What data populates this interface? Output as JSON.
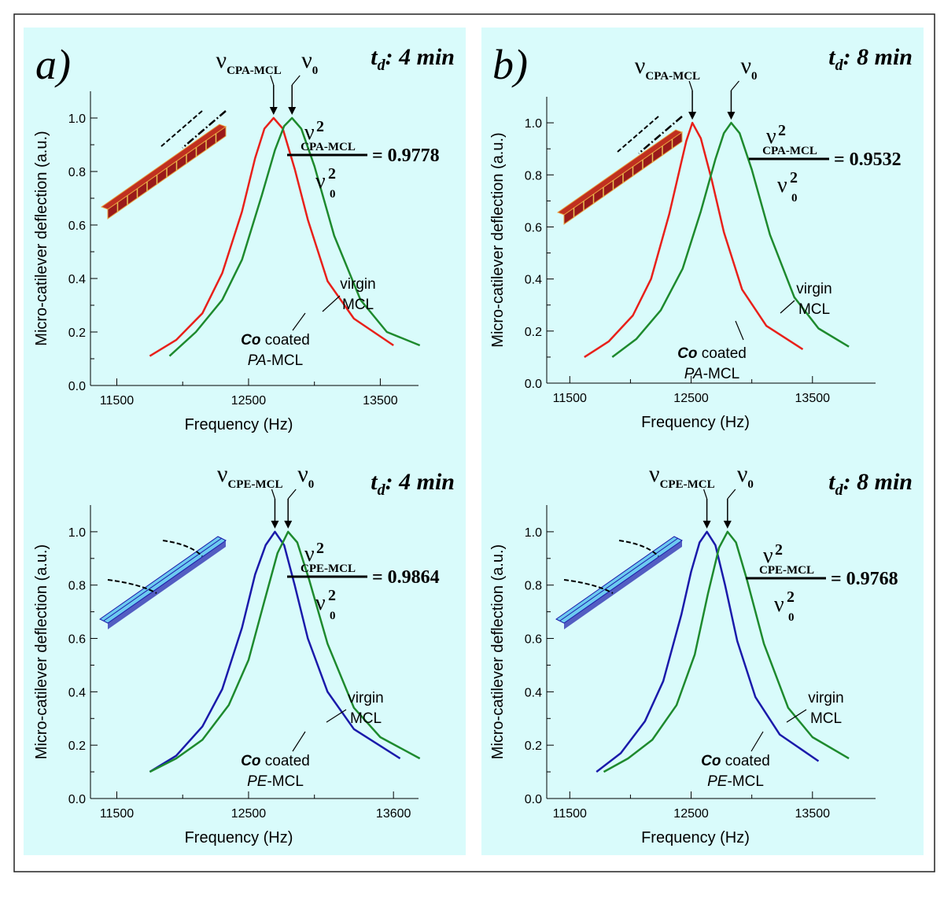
{
  "chart_data": [
    {
      "type": "line",
      "panel_label": "a)",
      "td": {
        "symbol": "t",
        "subscript": "d",
        "text": ": 4 min"
      },
      "peak_labels": [
        {
          "symbol": "ν",
          "subscript": "CPA-MCL"
        },
        {
          "symbol": "ν",
          "subscript": "0"
        }
      ],
      "ratio": {
        "numerator": {
          "symbol": "ν",
          "superscript": "2",
          "subscript": "CPA-MCL"
        },
        "denominator": {
          "symbol": "ν",
          "superscript": "2",
          "subscript": "0"
        },
        "result": "= 0.9778"
      },
      "xlabel": "Frequency (Hz)",
      "ylabel": "Micro-catilever deflection (a.u.)",
      "xlim": [
        11300,
        13790
      ],
      "ylim": [
        0,
        1.1
      ],
      "xticks": [
        11500,
        12500,
        13500
      ],
      "xminorticks": [
        12000,
        13000
      ],
      "yticks": [
        {
          "value": 0,
          "label": "0.0"
        },
        0.2,
        0.4,
        0.6,
        0.8,
        {
          "value": 1,
          "label": "1.0"
        }
      ],
      "yminorticks": [
        0.1,
        0.3,
        0.5,
        0.7,
        0.9
      ],
      "series": [
        {
          "label_lines": [
            [
              "Co",
              " coated"
            ],
            [
              "PA",
              "-MCL"
            ]
          ],
          "color": "#e8201a",
          "x": [
            11750,
            11950,
            12150,
            12300,
            12450,
            12550,
            12620,
            12690,
            12760,
            12850,
            12950,
            13100,
            13300,
            13600
          ],
          "values": [
            0.11,
            0.17,
            0.27,
            0.42,
            0.65,
            0.85,
            0.96,
            1.0,
            0.96,
            0.81,
            0.62,
            0.39,
            0.25,
            0.15
          ]
        },
        {
          "label_lines": [
            [
              "virgin"
            ],
            [
              "MCL"
            ]
          ],
          "color": "#1e8a2e",
          "x": [
            11900,
            12100,
            12300,
            12450,
            12600,
            12700,
            12770,
            12830,
            12900,
            13000,
            13150,
            13350,
            13550,
            13800
          ],
          "values": [
            0.11,
            0.2,
            0.32,
            0.47,
            0.71,
            0.88,
            0.97,
            1.0,
            0.96,
            0.82,
            0.56,
            0.32,
            0.2,
            0.15
          ]
        }
      ]
    },
    {
      "type": "line",
      "panel_label": "b)",
      "td": {
        "symbol": "t",
        "subscript": "d",
        "text": ": 8 min"
      },
      "peak_labels": [
        {
          "symbol": "ν",
          "subscript": "CPA-MCL"
        },
        {
          "symbol": "ν",
          "subscript": "0"
        }
      ],
      "ratio": {
        "numerator": {
          "symbol": "ν",
          "superscript": "2",
          "subscript": "CPA-MCL"
        },
        "denominator": {
          "symbol": "ν",
          "superscript": "2",
          "subscript": "0"
        },
        "result": "= 0.9532"
      },
      "xlabel": "Frequency (Hz)",
      "ylabel": "Micro-catilever deflection (a.u.)",
      "xlim": [
        11310,
        14020
      ],
      "ylim": [
        0,
        1.1
      ],
      "xticks": [
        11500,
        12500,
        13500
      ],
      "xminorticks": [
        12000,
        13000
      ],
      "yticks": [
        {
          "value": 0,
          "label": "0.0"
        },
        0.2,
        0.4,
        0.6,
        0.8,
        {
          "value": 1,
          "label": "1.0"
        }
      ],
      "yminorticks": [
        0.1,
        0.3,
        0.5,
        0.7,
        0.9
      ],
      "series": [
        {
          "label_lines": [
            [
              "Co",
              " coated"
            ],
            [
              "PA",
              "-MCL"
            ]
          ],
          "color": "#e8201a",
          "x": [
            11620,
            11820,
            12020,
            12170,
            12320,
            12420,
            12460,
            12510,
            12580,
            12670,
            12770,
            12920,
            13120,
            13420
          ],
          "values": [
            0.1,
            0.16,
            0.26,
            0.4,
            0.65,
            0.85,
            0.93,
            1.0,
            0.94,
            0.78,
            0.58,
            0.36,
            0.22,
            0.13
          ]
        },
        {
          "label_lines": [
            [
              "virgin"
            ],
            [
              "MCL"
            ]
          ],
          "color": "#1e8a2e",
          "x": [
            11850,
            12050,
            12250,
            12430,
            12580,
            12700,
            12770,
            12830,
            12900,
            13000,
            13150,
            13350,
            13550,
            13800
          ],
          "values": [
            0.1,
            0.17,
            0.28,
            0.44,
            0.66,
            0.86,
            0.96,
            1.0,
            0.96,
            0.82,
            0.57,
            0.33,
            0.21,
            0.14
          ]
        }
      ]
    },
    {
      "type": "line",
      "td": {
        "symbol": "t",
        "subscript": "d",
        "text": ": 4 min"
      },
      "peak_labels": [
        {
          "symbol": "ν",
          "subscript": "CPE-MCL"
        },
        {
          "symbol": "ν",
          "subscript": "0"
        }
      ],
      "ratio": {
        "numerator": {
          "symbol": "ν",
          "superscript": "2",
          "subscript": "CPE-MCL"
        },
        "denominator": {
          "symbol": "ν",
          "superscript": "2",
          "subscript": "0"
        },
        "result": "= 0.9864"
      },
      "xlabel": "Frequency (Hz)",
      "ylabel": "Micro-catilever deflection (a.u.)",
      "xlim": [
        11300,
        13790
      ],
      "ylim": [
        0,
        1.1
      ],
      "xticks": [
        11500,
        12500,
        13600
      ],
      "xminorticks": [
        12000,
        13000
      ],
      "yticks": [
        {
          "value": 0,
          "label": "0.0"
        },
        0.2,
        0.4,
        0.6,
        0.8,
        {
          "value": 1,
          "label": "1.0"
        }
      ],
      "yminorticks": [
        0.1,
        0.3,
        0.5,
        0.7,
        0.9
      ],
      "series": [
        {
          "label_lines": [
            [
              "Co",
              " coated"
            ],
            [
              "PE",
              "-MCL"
            ]
          ],
          "color": "#1a1aaa",
          "x": [
            11750,
            11950,
            12150,
            12300,
            12450,
            12550,
            12630,
            12700,
            12770,
            12850,
            12950,
            13100,
            13300,
            13650
          ],
          "values": [
            0.1,
            0.16,
            0.27,
            0.41,
            0.64,
            0.84,
            0.95,
            1.0,
            0.95,
            0.8,
            0.6,
            0.4,
            0.26,
            0.15
          ]
        },
        {
          "label_lines": [
            [
              "virgin"
            ],
            [
              "MCL"
            ]
          ],
          "color": "#1e8a2e",
          "x": [
            11750,
            11950,
            12150,
            12350,
            12500,
            12620,
            12720,
            12800,
            12870,
            12960,
            13100,
            13300,
            13500,
            13800
          ],
          "values": [
            0.1,
            0.15,
            0.22,
            0.35,
            0.52,
            0.74,
            0.92,
            1.0,
            0.96,
            0.82,
            0.58,
            0.34,
            0.23,
            0.15
          ]
        }
      ]
    },
    {
      "type": "line",
      "td": {
        "symbol": "t",
        "subscript": "d",
        "text": ": 8 min"
      },
      "peak_labels": [
        {
          "symbol": "ν",
          "subscript": "CPE-MCL"
        },
        {
          "symbol": "ν",
          "subscript": "0"
        }
      ],
      "ratio": {
        "numerator": {
          "symbol": "ν",
          "superscript": "2",
          "subscript": "CPE-MCL"
        },
        "denominator": {
          "symbol": "ν",
          "superscript": "2",
          "subscript": "0"
        },
        "result": "= 0.9768"
      },
      "xlabel": "Frequency (Hz)",
      "ylabel": "Micro-catilever deflection (a.u.)",
      "xlim": [
        11310,
        14020
      ],
      "ylim": [
        0,
        1.1
      ],
      "xticks": [
        11500,
        12500,
        13500
      ],
      "xminorticks": [
        12000,
        13000
      ],
      "yticks": [
        {
          "value": 0,
          "label": "0.0"
        },
        0.2,
        0.4,
        0.6,
        0.8,
        {
          "value": 1,
          "label": "1.0"
        }
      ],
      "yminorticks": [
        0.1,
        0.3,
        0.5,
        0.7,
        0.9
      ],
      "series": [
        {
          "label_lines": [
            [
              "Co",
              " coated"
            ],
            [
              "PE",
              "-MCL"
            ]
          ],
          "color": "#1a1aaa",
          "x": [
            11720,
            11920,
            12120,
            12270,
            12420,
            12500,
            12570,
            12630,
            12700,
            12780,
            12880,
            13030,
            13230,
            13550
          ],
          "values": [
            0.1,
            0.17,
            0.29,
            0.44,
            0.69,
            0.85,
            0.96,
            1.0,
            0.95,
            0.8,
            0.59,
            0.38,
            0.24,
            0.14
          ]
        },
        {
          "label_lines": [
            [
              "virgin"
            ],
            [
              "MCL"
            ]
          ],
          "color": "#1e8a2e",
          "x": [
            11780,
            11980,
            12180,
            12380,
            12530,
            12640,
            12730,
            12800,
            12870,
            12960,
            13100,
            13300,
            13500,
            13800
          ],
          "values": [
            0.1,
            0.15,
            0.22,
            0.35,
            0.54,
            0.77,
            0.94,
            1.0,
            0.96,
            0.82,
            0.58,
            0.34,
            0.23,
            0.15
          ]
        }
      ]
    }
  ]
}
